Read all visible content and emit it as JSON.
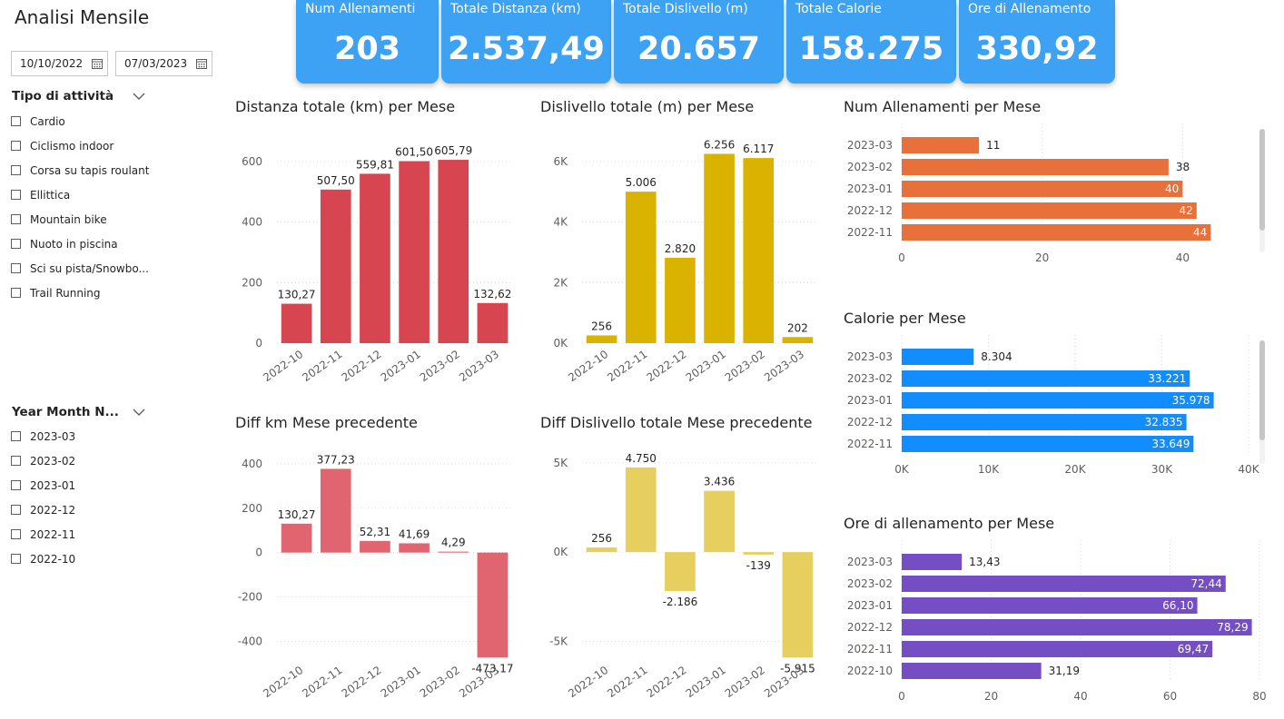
{
  "page": {
    "title": "Analisi Mensile"
  },
  "filters": {
    "date_start": "10/10/2022",
    "date_end": "07/03/2023",
    "activity_slicer": {
      "title": "Tipo di attività",
      "items": [
        "Cardio",
        "Ciclismo indoor",
        "Corsa su tapis roulant",
        "Ellittica",
        "Mountain bike",
        "Nuoto in piscina",
        "Sci su pista/Snowbo...",
        "Trail Running"
      ]
    },
    "month_slicer": {
      "title": "Year Month N...",
      "items": [
        "2023-03",
        "2023-02",
        "2023-01",
        "2022-12",
        "2022-11",
        "2022-10"
      ]
    }
  },
  "kpis": [
    {
      "label": "Num Allenamenti",
      "value": "203"
    },
    {
      "label": "Totale Distanza (km)",
      "value": "2.537,49"
    },
    {
      "label": "Totale Dislivello (m)",
      "value": "20.657"
    },
    {
      "label": "Totale Calorie",
      "value": "158.275"
    },
    {
      "label": "Ore di Allenamento",
      "value": "330,92"
    }
  ],
  "colors": {
    "kpi_bg": "#3da2f4",
    "distance": "#d64550",
    "elevation": "#d9b300",
    "diff_distance": "#e06570",
    "diff_elevation": "#e6cf5e",
    "workouts": "#e8703a",
    "calories": "#118dff",
    "hours": "#744ec2"
  },
  "chart_data": [
    {
      "id": "distance",
      "type": "bar",
      "title": "Distanza totale (km) per Mese",
      "categories": [
        "2022-10",
        "2022-11",
        "2022-12",
        "2023-01",
        "2023-02",
        "2023-03"
      ],
      "values": [
        130.27,
        507.5,
        559.81,
        601.5,
        605.79,
        132.62
      ],
      "labels": [
        "130,27",
        "507,50",
        "559,81",
        "601,50",
        "605,79",
        "132,62"
      ],
      "ylim": [
        0,
        660
      ],
      "yticks": [
        0,
        200,
        400,
        600
      ],
      "ytick_labels": [
        "0",
        "200",
        "400",
        "600"
      ],
      "color": "#d64550"
    },
    {
      "id": "elevation",
      "type": "bar",
      "title": "Dislivello totale (m) per Mese",
      "categories": [
        "2022-10",
        "2022-11",
        "2022-12",
        "2023-01",
        "2023-02",
        "2023-03"
      ],
      "values": [
        256,
        5006,
        2820,
        6256,
        6117,
        202
      ],
      "labels": [
        "256",
        "5.006",
        "2.820",
        "6.256",
        "6.117",
        "202"
      ],
      "ylim": [
        0,
        6600
      ],
      "yticks": [
        0,
        2000,
        4000,
        6000
      ],
      "ytick_labels": [
        "0K",
        "2K",
        "4K",
        "6K"
      ],
      "color": "#d9b300"
    },
    {
      "id": "diff_distance",
      "type": "bar",
      "title": "Diff km Mese precedente",
      "categories": [
        "2022-10",
        "2022-11",
        "2022-12",
        "2023-01",
        "2023-02",
        "2023-03"
      ],
      "values": [
        130.27,
        377.23,
        52.31,
        41.69,
        4.29,
        -473.17
      ],
      "labels": [
        "130,27",
        "377,23",
        "52,31",
        "41,69",
        "4,29",
        "-473,17"
      ],
      "ylim": [
        -480,
        420
      ],
      "yticks": [
        -400,
        -200,
        0,
        200,
        400
      ],
      "ytick_labels": [
        "-400",
        "-200",
        "0",
        "200",
        "400"
      ],
      "color": "#e06570"
    },
    {
      "id": "diff_elevation",
      "type": "bar",
      "title": "Diff Dislivello totale Mese precedente",
      "categories": [
        "2022-10",
        "2022-11",
        "2022-12",
        "2023-01",
        "2023-02",
        "2023-03"
      ],
      "values": [
        256,
        4750,
        -2186,
        3436,
        -139,
        -5915
      ],
      "labels": [
        "256",
        "4.750",
        "-2.186",
        "3.436",
        "-139",
        "-5.915"
      ],
      "ylim": [
        -6000,
        5200
      ],
      "yticks": [
        -5000,
        0,
        5000
      ],
      "ytick_labels": [
        "-5K",
        "0K",
        "5K"
      ],
      "color": "#e6cf5e"
    },
    {
      "id": "workouts",
      "type": "bar",
      "orientation": "horizontal",
      "title": "Num Allenamenti per Mese",
      "categories": [
        "2023-03",
        "2023-02",
        "2023-01",
        "2022-12",
        "2022-11"
      ],
      "values": [
        11,
        38,
        40,
        42,
        44
      ],
      "labels": [
        "11",
        "38",
        "40",
        "42",
        "44"
      ],
      "xlim": [
        0,
        45
      ],
      "xticks": [
        0,
        20,
        40
      ],
      "xtick_labels": [
        "0",
        "20",
        "40"
      ],
      "color": "#e8703a"
    },
    {
      "id": "calories",
      "type": "bar",
      "orientation": "horizontal",
      "title": "Calorie per Mese",
      "categories": [
        "2023-03",
        "2023-02",
        "2023-01",
        "2022-12",
        "2022-11"
      ],
      "values": [
        8304,
        33221,
        35978,
        32835,
        33649
      ],
      "labels": [
        "8.304",
        "33.221",
        "35.978",
        "32.835",
        "33.649"
      ],
      "xlim": [
        0,
        40000
      ],
      "xticks": [
        0,
        10000,
        20000,
        30000,
        40000
      ],
      "xtick_labels": [
        "0K",
        "10K",
        "20K",
        "30K",
        "40K"
      ],
      "color": "#118dff"
    },
    {
      "id": "hours",
      "type": "bar",
      "orientation": "horizontal",
      "title": "Ore di allenamento per Mese",
      "categories": [
        "2023-03",
        "2023-02",
        "2023-01",
        "2022-12",
        "2022-11",
        "2022-10"
      ],
      "values": [
        13.43,
        72.44,
        66.1,
        78.29,
        69.47,
        31.19
      ],
      "labels": [
        "13,43",
        "72,44",
        "66,10",
        "78,29",
        "69,47",
        "31,19"
      ],
      "xlim": [
        0,
        80
      ],
      "xticks": [
        0,
        20,
        40,
        60,
        80
      ],
      "xtick_labels": [
        "0",
        "20",
        "40",
        "60",
        "80"
      ],
      "color": "#744ec2"
    }
  ]
}
